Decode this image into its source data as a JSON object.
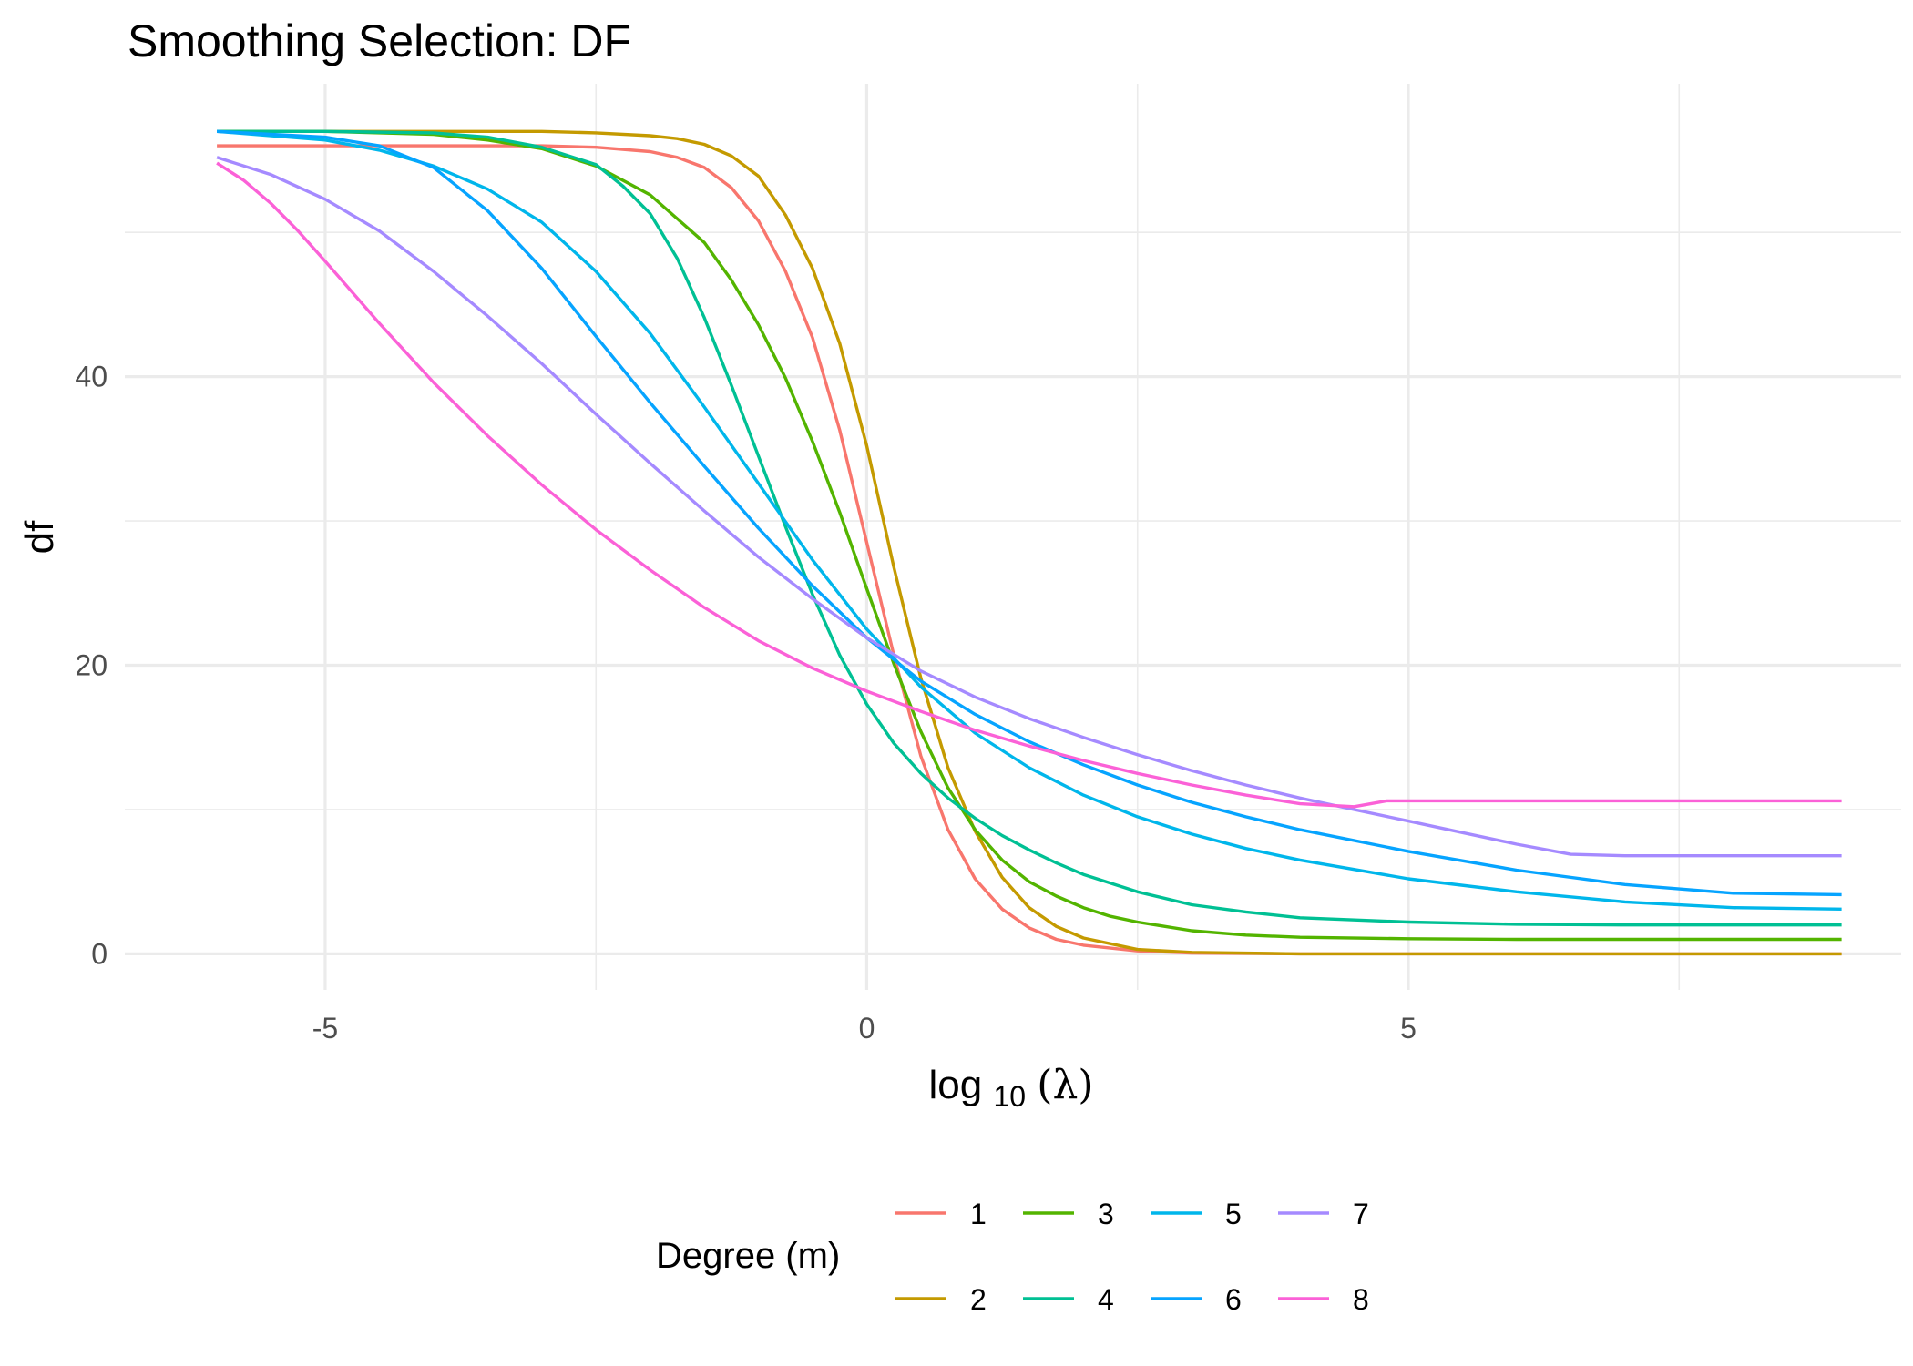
{
  "chart_data": {
    "type": "line",
    "title": "Smoothing Selection: DF",
    "xlabel": "log10(λ)",
    "xlabel_main": "log",
    "xlabel_sub": "10",
    "xlabel_paren": "(λ)",
    "ylabel": "df",
    "xlim": [
      -6.85,
      9.55
    ],
    "ylim": [
      -2.5,
      60.3
    ],
    "x_ticks": [
      -5,
      0,
      5
    ],
    "x_tick_labels": [
      "-5",
      "0",
      "5"
    ],
    "x_minor": [
      -2.5,
      2.5,
      7.5
    ],
    "y_ticks": [
      0,
      20,
      40
    ],
    "y_tick_labels": [
      "0",
      "20",
      "40"
    ],
    "y_minor": [
      10,
      30,
      50
    ],
    "grid": true,
    "legend": {
      "title": "Degree (m)",
      "position": "bottom",
      "rows": 2
    },
    "series": [
      {
        "name": "1",
        "color": "#F8766D",
        "x": [
          -6,
          -5,
          -4,
          -3,
          -2.5,
          -2,
          -1.75,
          -1.5,
          -1.25,
          -1,
          -0.75,
          -0.5,
          -0.25,
          0,
          0.25,
          0.5,
          0.75,
          1,
          1.25,
          1.5,
          1.75,
          2,
          2.5,
          3,
          4,
          5,
          6,
          7,
          8,
          9
        ],
        "y": [
          56,
          56,
          56,
          56,
          55.9,
          55.6,
          55.2,
          54.5,
          53.1,
          50.8,
          47.3,
          42.7,
          36.3,
          28.5,
          20.7,
          13.7,
          8.6,
          5.2,
          3.1,
          1.8,
          1.0,
          0.6,
          0.2,
          0.05,
          0,
          0,
          0,
          0,
          0,
          0
        ]
      },
      {
        "name": "2",
        "color": "#C49A00",
        "x": [
          -6,
          -5,
          -4,
          -3,
          -2.5,
          -2,
          -1.75,
          -1.5,
          -1.25,
          -1,
          -0.75,
          -0.5,
          -0.25,
          0,
          0.25,
          0.5,
          0.75,
          1,
          1.25,
          1.5,
          1.75,
          2,
          2.5,
          3,
          4,
          5,
          6,
          7,
          8,
          9
        ],
        "y": [
          57,
          57,
          57,
          57,
          56.9,
          56.7,
          56.5,
          56.1,
          55.3,
          53.9,
          51.2,
          47.5,
          42.3,
          35.2,
          26.8,
          19.1,
          12.9,
          8.5,
          5.3,
          3.2,
          1.9,
          1.1,
          0.3,
          0.1,
          0,
          0,
          0,
          0,
          0,
          0
        ]
      },
      {
        "name": "3",
        "color": "#53B400",
        "x": [
          -6,
          -5,
          -4,
          -3.5,
          -3,
          -2.5,
          -2,
          -1.5,
          -1.25,
          -1,
          -0.75,
          -0.5,
          -0.25,
          0,
          0.25,
          0.5,
          0.75,
          1,
          1.25,
          1.5,
          1.75,
          2,
          2.25,
          2.5,
          3,
          3.5,
          4,
          5,
          6,
          7,
          8,
          9
        ],
        "y": [
          57,
          57,
          56.8,
          56.4,
          55.8,
          54.6,
          52.6,
          49.3,
          46.7,
          43.6,
          39.9,
          35.5,
          30.6,
          25.3,
          20.1,
          15.4,
          11.5,
          8.6,
          6.5,
          5.0,
          4.0,
          3.2,
          2.6,
          2.2,
          1.6,
          1.3,
          1.15,
          1.05,
          1.0,
          1.0,
          1.0,
          1.0
        ]
      },
      {
        "name": "4",
        "color": "#00C094",
        "x": [
          -6,
          -5,
          -4,
          -3.5,
          -3,
          -2.5,
          -2.25,
          -2,
          -1.75,
          -1.5,
          -1.25,
          -1,
          -0.75,
          -0.5,
          -0.25,
          0,
          0.25,
          0.5,
          0.75,
          1,
          1.25,
          1.5,
          1.75,
          2,
          2.5,
          3,
          3.5,
          4,
          5,
          6,
          7,
          8,
          9
        ],
        "y": [
          57,
          57,
          56.9,
          56.6,
          55.9,
          54.7,
          53.2,
          51.3,
          48.2,
          44.1,
          39.4,
          34.5,
          29.6,
          24.9,
          20.7,
          17.3,
          14.6,
          12.5,
          10.8,
          9.4,
          8.2,
          7.2,
          6.3,
          5.5,
          4.3,
          3.4,
          2.9,
          2.5,
          2.2,
          2.05,
          2.0,
          2.0,
          2.0
        ]
      },
      {
        "name": "5",
        "color": "#00B6EB",
        "x": [
          -6,
          -5,
          -4.5,
          -4,
          -3.5,
          -3,
          -2.5,
          -2,
          -1.5,
          -1,
          -0.5,
          0,
          0.5,
          1,
          1.5,
          2,
          2.5,
          3,
          3.5,
          4,
          5,
          6,
          7,
          8,
          9
        ],
        "y": [
          57,
          56.4,
          55.7,
          54.6,
          53.0,
          50.7,
          47.3,
          43.0,
          37.9,
          32.6,
          27.3,
          22.5,
          18.5,
          15.3,
          12.9,
          11.0,
          9.5,
          8.3,
          7.3,
          6.5,
          5.2,
          4.3,
          3.6,
          3.2,
          3.1
        ]
      },
      {
        "name": "6",
        "color": "#06A4FF",
        "x": [
          -6,
          -5,
          -4.5,
          -4,
          -3.5,
          -3,
          -2.5,
          -2,
          -1.5,
          -1,
          -0.5,
          0,
          0.5,
          1,
          1.5,
          2,
          2.5,
          3,
          3.5,
          4,
          5,
          6,
          7,
          8,
          9
        ],
        "y": [
          57,
          56.6,
          56.0,
          54.5,
          51.5,
          47.5,
          42.8,
          38.2,
          33.8,
          29.5,
          25.5,
          21.9,
          18.9,
          16.6,
          14.7,
          13.1,
          11.7,
          10.5,
          9.5,
          8.6,
          7.1,
          5.8,
          4.8,
          4.2,
          4.1
        ]
      },
      {
        "name": "7",
        "color": "#A58AFF",
        "x": [
          -6,
          -5.5,
          -5,
          -4.5,
          -4,
          -3.5,
          -3,
          -2.5,
          -2,
          -1.5,
          -1,
          -0.5,
          0,
          0.5,
          1,
          1.5,
          2,
          2.5,
          3,
          3.5,
          4,
          4.5,
          5,
          5.5,
          6,
          6.5,
          7,
          8,
          9
        ],
        "y": [
          55.2,
          54.0,
          52.3,
          50.1,
          47.3,
          44.2,
          40.9,
          37.4,
          34.0,
          30.7,
          27.5,
          24.6,
          21.9,
          19.6,
          17.8,
          16.3,
          15.0,
          13.8,
          12.7,
          11.7,
          10.8,
          10.0,
          9.2,
          8.4,
          7.6,
          6.9,
          6.8,
          6.8,
          6.8
        ]
      },
      {
        "name": "8",
        "color": "#FB61D7",
        "x": [
          -6,
          -5.75,
          -5.5,
          -5.25,
          -5,
          -4.5,
          -4,
          -3.5,
          -3,
          -2.5,
          -2,
          -1.5,
          -1,
          -0.5,
          0,
          0.5,
          1,
          1.5,
          2,
          2.5,
          3,
          3.5,
          4,
          4.5,
          4.8,
          5,
          6,
          7,
          8,
          9
        ],
        "y": [
          54.8,
          53.6,
          52.0,
          50.1,
          48.0,
          43.7,
          39.6,
          35.9,
          32.5,
          29.4,
          26.6,
          24.0,
          21.7,
          19.8,
          18.2,
          16.8,
          15.5,
          14.4,
          13.4,
          12.5,
          11.7,
          11.0,
          10.4,
          10.2,
          10.6,
          10.6,
          10.6,
          10.6,
          10.6,
          10.6
        ]
      }
    ]
  }
}
